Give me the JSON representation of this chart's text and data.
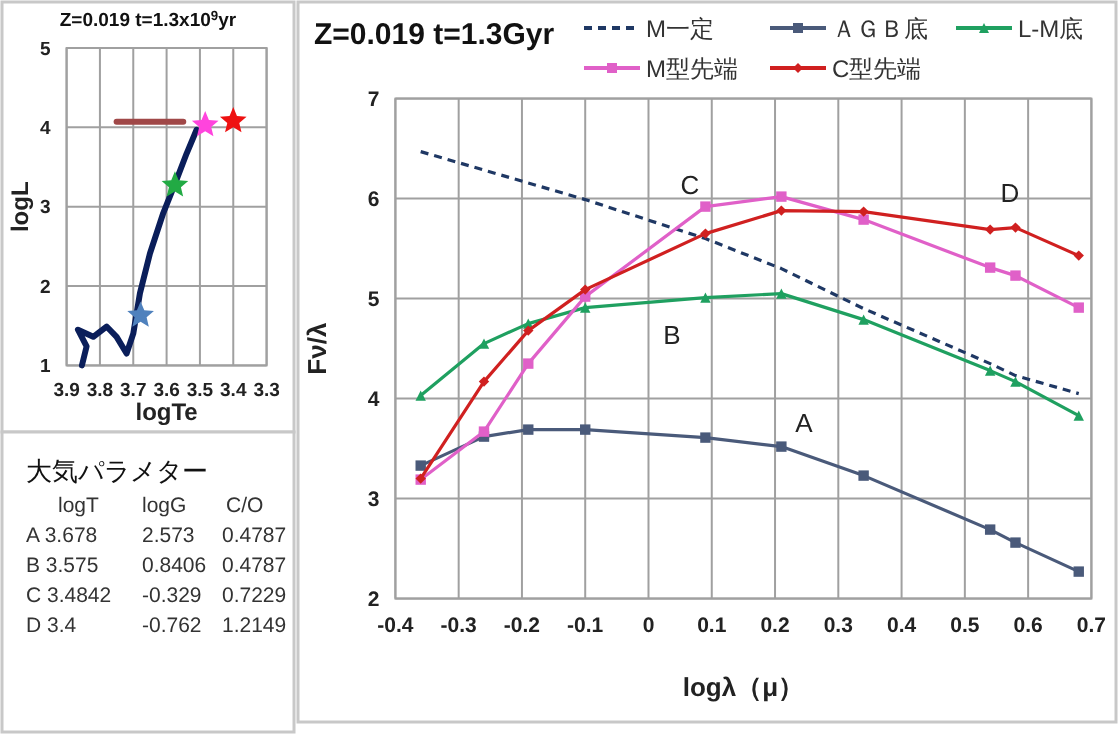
{
  "chart_data": [
    {
      "type": "line",
      "title": "Z=0.019  t=1.3x10$^{9}$yr",
      "xlabel": "logTe",
      "ylabel": "logL",
      "xlim": [
        3.9,
        3.3
      ],
      "xticks": [
        3.9,
        3.8,
        3.7,
        3.6,
        3.5,
        3.4,
        3.3
      ],
      "ylim": [
        1,
        5
      ],
      "yticks": [
        1,
        2,
        3,
        4,
        5
      ],
      "grid": true,
      "legend": false,
      "series": [
        {
          "type": "line",
          "color": "#0a1e5a",
          "x": [
            3.854,
            3.84,
            3.866,
            3.82,
            3.78,
            3.75,
            3.72,
            3.7,
            3.68,
            3.65,
            3.61,
            3.57,
            3.54,
            3.51
          ],
          "values": [
            1.0,
            1.24,
            1.45,
            1.36,
            1.49,
            1.36,
            1.15,
            1.4,
            1.91,
            2.41,
            2.92,
            3.34,
            3.67,
            3.97
          ]
        },
        {
          "type": "line",
          "color": "#a04848",
          "x": [
            3.75,
            3.55
          ],
          "values": [
            4.07,
            4.07
          ]
        },
        {
          "type": "scatter",
          "marker": "star",
          "color": "#4f81bd",
          "x": [
            3.678
          ],
          "values": [
            1.63
          ]
        },
        {
          "type": "scatter",
          "marker": "star",
          "color": "#22aa44",
          "x": [
            3.575
          ],
          "values": [
            3.27
          ]
        },
        {
          "type": "scatter",
          "marker": "star",
          "color": "#ff44dd",
          "x": [
            3.4842
          ],
          "values": [
            4.03
          ]
        },
        {
          "type": "scatter",
          "marker": "star",
          "color": "#ee1111",
          "x": [
            3.4
          ],
          "values": [
            4.08
          ]
        }
      ]
    },
    {
      "type": "other",
      "title": "大気パラメター",
      "annotations": [
        "logT  logG  C/O",
        "A 3.678  2.573  0.4787",
        "B 3.575  0.8406  0.4787",
        "C 3.4842  -0.329  0.7229",
        "D 3.4  -0.762  1.2149"
      ]
    },
    {
      "type": "line",
      "title": "Z=0.019  t=1.3Gyr",
      "xlabel": "logλ（μ）",
      "ylabel": "Fν/λ",
      "xlim": [
        -0.4,
        0.7
      ],
      "xticks": [
        -0.4,
        -0.3,
        -0.2,
        -0.1,
        0,
        0.1,
        0.2,
        0.3,
        0.4,
        0.5,
        0.6,
        0.7
      ],
      "ylim": [
        2,
        7
      ],
      "yticks": [
        2,
        3,
        4,
        5,
        6,
        7
      ],
      "grid": true,
      "legend": "top",
      "x": [
        -0.36,
        -0.26,
        -0.19,
        -0.1,
        0.09,
        0.21,
        0.34,
        0.54,
        0.58,
        0.68
      ],
      "series": [
        {
          "name": "M一定",
          "color": "#1f3864",
          "line_style": "dashed",
          "marker": "none",
          "values": [
            6.47,
            null,
            null,
            5.99,
            5.6,
            5.3,
            4.9,
            4.35,
            4.23,
            4.05
          ]
        },
        {
          "name": "ＡＧＢ底",
          "color": "#4a5a7a",
          "marker": "square",
          "values": [
            3.33,
            3.62,
            3.69,
            3.69,
            3.61,
            3.52,
            3.23,
            2.69,
            2.56,
            2.27
          ]
        },
        {
          "name": "L-M底",
          "color": "#1fa060",
          "marker": "triangle",
          "values": [
            4.03,
            4.55,
            4.75,
            4.91,
            5.01,
            5.05,
            4.79,
            4.28,
            4.17,
            3.83
          ]
        },
        {
          "name": "M型先端",
          "color": "#e060c8",
          "marker": "square",
          "values": [
            3.19,
            3.67,
            4.35,
            5.02,
            5.92,
            6.02,
            5.79,
            5.31,
            5.23,
            4.91
          ]
        },
        {
          "name": "C型先端",
          "color": "#d02020",
          "marker": "diamond",
          "values": [
            3.2,
            4.17,
            4.68,
            5.09,
            5.65,
            5.88,
            5.87,
            5.69,
            5.71,
            5.43
          ]
        }
      ],
      "annotations": [
        "A",
        "B",
        "C",
        "D"
      ]
    }
  ]
}
